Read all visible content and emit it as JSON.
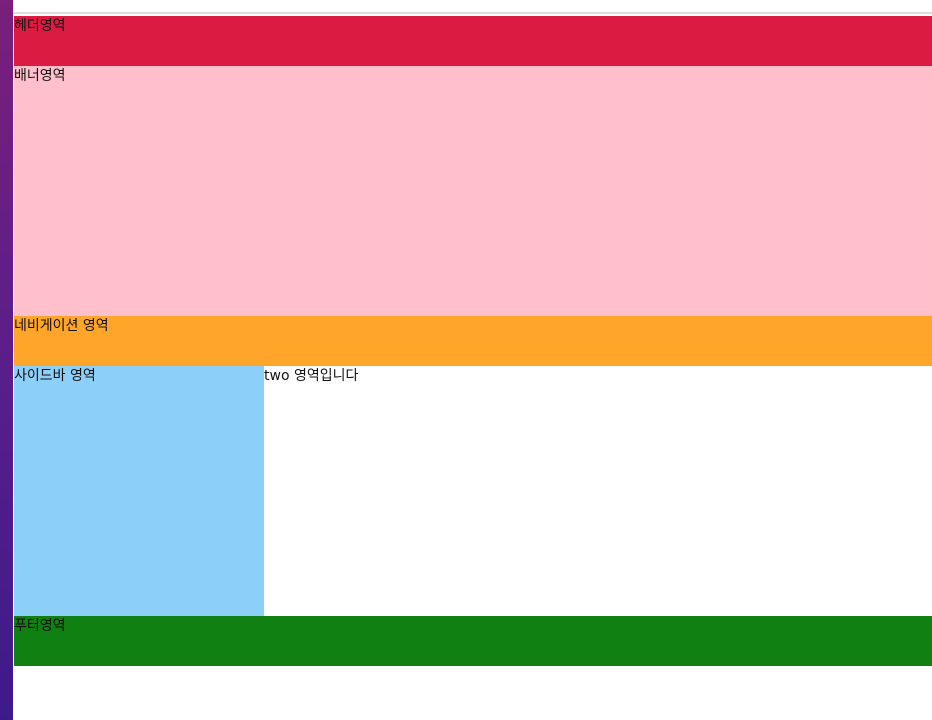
{
  "colors": {
    "header_bg": "#dc1b42",
    "banner_bg": "#ffc0cb",
    "nav_bg": "#ffa52a",
    "sidebar_bg": "#8ccff7",
    "main_bg": "#ffffff",
    "footer_bg": "#118013"
  },
  "header": {
    "label": "헤더영역"
  },
  "banner": {
    "label": "배너영역"
  },
  "nav": {
    "label": "네비게이션 영역"
  },
  "sidebar": {
    "label": "사이드바 영역"
  },
  "main": {
    "label": "two 영역입니다"
  },
  "footer": {
    "label": "푸터영역"
  }
}
